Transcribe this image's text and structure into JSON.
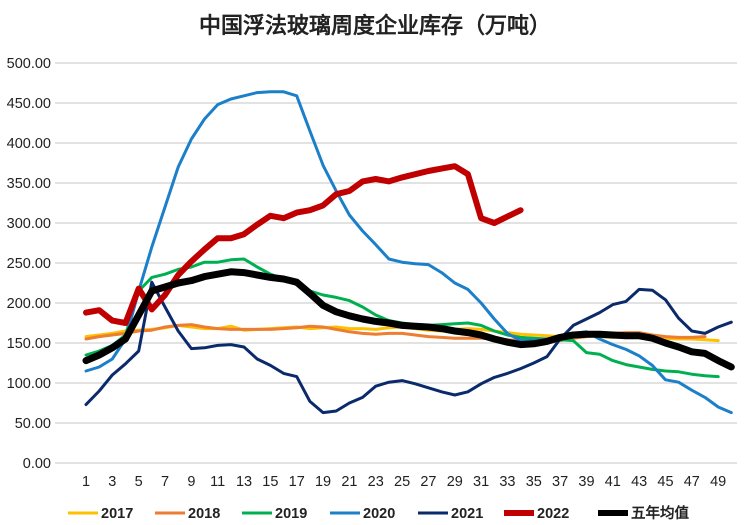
{
  "chart_data": {
    "type": "line",
    "title": "中国浮法玻璃周度企业库存（万吨）",
    "xlabel": "",
    "ylabel": "",
    "ylim": [
      0,
      500
    ],
    "y_ticks": [
      "0.00",
      "50.00",
      "100.00",
      "150.00",
      "200.00",
      "250.00",
      "300.00",
      "350.00",
      "400.00",
      "450.00",
      "500.00"
    ],
    "x_tick_labels": [
      "1",
      "3",
      "5",
      "7",
      "9",
      "11",
      "13",
      "15",
      "17",
      "19",
      "21",
      "23",
      "25",
      "27",
      "29",
      "31",
      "33",
      "35",
      "37",
      "39",
      "41",
      "43",
      "45",
      "47",
      "49"
    ],
    "grid": true,
    "legend_position": "bottom",
    "series": [
      {
        "name": "2017",
        "color": "#FFC000",
        "width": 3,
        "values": [
          158,
          160,
          162,
          165,
          166,
          167,
          169,
          172,
          170,
          168,
          168,
          171,
          166,
          167,
          168,
          169,
          170,
          168,
          169,
          170,
          168,
          168,
          167,
          169,
          170,
          168,
          166,
          165,
          167,
          168,
          167,
          165,
          163,
          161,
          160,
          159,
          158,
          159,
          159,
          158,
          157,
          158,
          158,
          157,
          156,
          155,
          155,
          154,
          153
        ]
      },
      {
        "name": "2018",
        "color": "#ED7D31",
        "width": 3,
        "values": [
          155,
          158,
          160,
          162,
          165,
          166,
          170,
          172,
          173,
          170,
          168,
          167,
          167,
          167,
          167,
          168,
          169,
          171,
          170,
          167,
          164,
          162,
          161,
          162,
          162,
          160,
          158,
          157,
          156,
          156,
          156,
          155,
          154,
          153,
          152,
          152,
          153,
          156,
          158,
          160,
          162,
          163,
          163,
          160,
          158,
          157,
          157,
          158
        ]
      },
      {
        "name": "2019",
        "color": "#00B050",
        "width": 3,
        "values": [
          135,
          140,
          147,
          160,
          215,
          232,
          236,
          242,
          245,
          251,
          251,
          254,
          255,
          245,
          236,
          230,
          223,
          215,
          210,
          207,
          203,
          195,
          185,
          178,
          175,
          173,
          172,
          173,
          174,
          175,
          172,
          165,
          160,
          157,
          156,
          155,
          154,
          153,
          138,
          136,
          128,
          123,
          120,
          117,
          115,
          114,
          111,
          109,
          108
        ]
      },
      {
        "name": "2020",
        "color": "#1B7FC9",
        "width": 3,
        "values": [
          115,
          120,
          130,
          155,
          215,
          270,
          320,
          370,
          405,
          430,
          448,
          455,
          459,
          463,
          464,
          464,
          459,
          415,
          372,
          340,
          310,
          290,
          273,
          255,
          251,
          249,
          248,
          238,
          225,
          217,
          200,
          180,
          162,
          153,
          153,
          155,
          158,
          162,
          164,
          155,
          148,
          142,
          134,
          122,
          104,
          101,
          91,
          82,
          70,
          63
        ]
      },
      {
        "name": "2021",
        "color": "#0B2A6B",
        "width": 3,
        "values": [
          73,
          90,
          110,
          124,
          140,
          226,
          195,
          165,
          143,
          144,
          147,
          148,
          145,
          130,
          122,
          112,
          108,
          77,
          63,
          65,
          75,
          82,
          96,
          101,
          103,
          99,
          94,
          89,
          85,
          89,
          99,
          107,
          112,
          118,
          125,
          133,
          155,
          172,
          180,
          188,
          198,
          202,
          217,
          216,
          204,
          181,
          165,
          162,
          170,
          176
        ]
      },
      {
        "name": "2022",
        "color": "#C00000",
        "width": 6,
        "values": [
          188,
          191,
          178,
          175,
          218,
          192,
          210,
          235,
          252,
          267,
          281,
          281,
          286,
          298,
          309,
          306,
          313,
          316,
          322,
          336,
          340,
          352,
          355,
          352,
          357,
          361,
          365,
          368,
          371,
          361,
          306,
          300,
          308,
          316
        ]
      },
      {
        "name": "五年均值",
        "color": "#000000",
        "width": 7,
        "values": [
          128,
          135,
          144,
          155,
          185,
          215,
          220,
          225,
          228,
          233,
          236,
          239,
          238,
          235,
          232,
          230,
          226,
          212,
          197,
          189,
          184,
          180,
          177,
          175,
          172,
          171,
          170,
          168,
          165,
          163,
          160,
          155,
          151,
          148,
          149,
          152,
          157,
          160,
          161,
          161,
          160,
          159,
          159,
          156,
          150,
          145,
          139,
          137,
          128,
          120
        ]
      }
    ]
  }
}
